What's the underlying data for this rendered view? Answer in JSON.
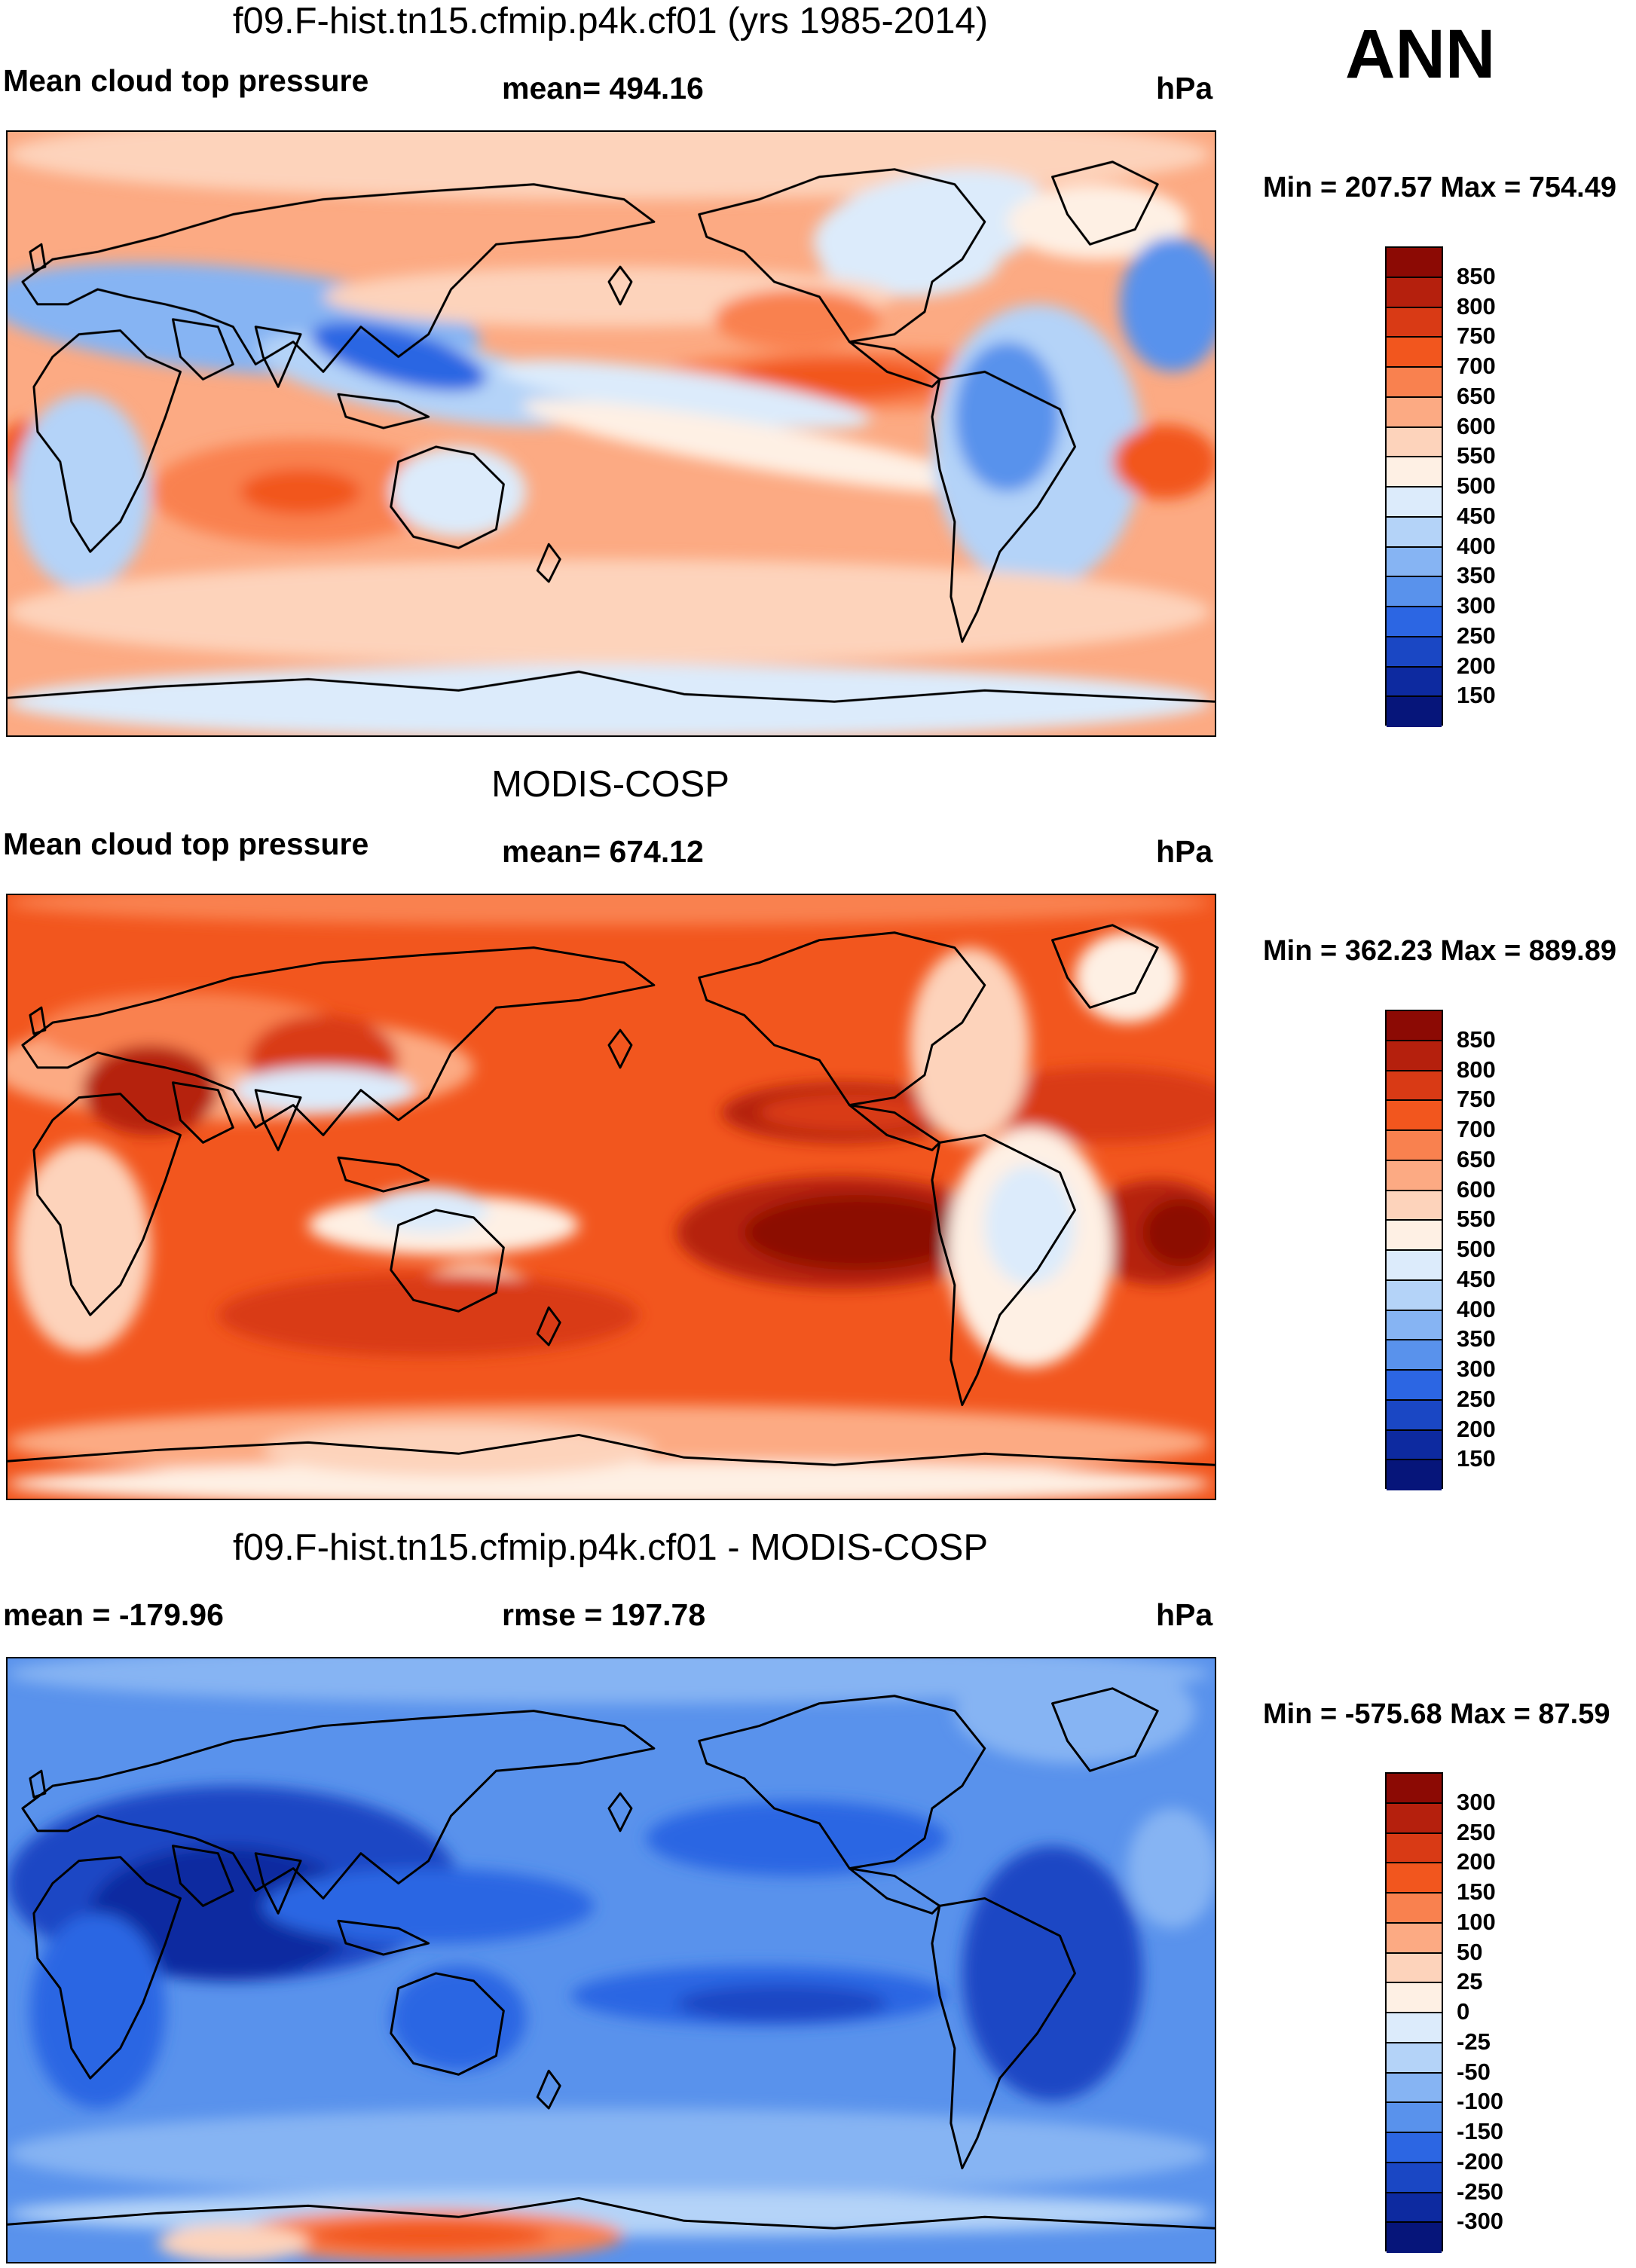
{
  "season": "ANN",
  "coast_color": "#000000",
  "panels": [
    {
      "title": "f09.F-hist.tn15.cfmip.p4k.cf01 (yrs 1985-2014)",
      "left_label": "Mean cloud top pressure",
      "center_label": "mean= 494.16",
      "units": "hPa",
      "minmax": "Min = 207.57 Max = 754.49",
      "field": "model",
      "colorbar": {
        "labels": [
          "850",
          "800",
          "750",
          "700",
          "650",
          "600",
          "550",
          "500",
          "450",
          "400",
          "350",
          "300",
          "250",
          "200",
          "150"
        ],
        "colors": [
          "#8c0a04",
          "#b5200d",
          "#d93a15",
          "#f2561e",
          "#f9814f",
          "#fcaa83",
          "#fdd3bb",
          "#fef0e4",
          "#dcebfb",
          "#b4d3f8",
          "#86b4f3",
          "#5992ec",
          "#2c66e3",
          "#1a47c4",
          "#0d2aa0",
          "#06157a"
        ]
      }
    },
    {
      "title": "MODIS-COSP",
      "left_label": "Mean cloud top pressure",
      "center_label": "mean= 674.12",
      "units": "hPa",
      "minmax": "Min = 362.23 Max = 889.89",
      "field": "obs",
      "colorbar": {
        "labels": [
          "850",
          "800",
          "750",
          "700",
          "650",
          "600",
          "550",
          "500",
          "450",
          "400",
          "350",
          "300",
          "250",
          "200",
          "150"
        ],
        "colors": [
          "#8c0a04",
          "#b5200d",
          "#d93a15",
          "#f2561e",
          "#f9814f",
          "#fcaa83",
          "#fdd3bb",
          "#fef0e4",
          "#dcebfb",
          "#b4d3f8",
          "#86b4f3",
          "#5992ec",
          "#2c66e3",
          "#1a47c4",
          "#0d2aa0",
          "#06157a"
        ]
      }
    },
    {
      "title": "f09.F-hist.tn15.cfmip.p4k.cf01 - MODIS-COSP",
      "left_label": "mean = -179.96",
      "center_label": "rmse = 197.78",
      "units": "hPa",
      "minmax": "Min = -575.68 Max =  87.59",
      "field": "diff",
      "colorbar": {
        "labels": [
          "300",
          "250",
          "200",
          "150",
          "100",
          "50",
          "25",
          "0",
          "-25",
          "-50",
          "-100",
          "-150",
          "-200",
          "-250",
          "-300"
        ],
        "colors": [
          "#8c0a04",
          "#b5200d",
          "#d93a15",
          "#f2561e",
          "#f9814f",
          "#fcaa83",
          "#fdd3bb",
          "#fef0e4",
          "#dcebfb",
          "#b4d3f8",
          "#86b4f3",
          "#5992ec",
          "#2c66e3",
          "#1a47c4",
          "#0d2aa0",
          "#06157a"
        ]
      }
    }
  ]
}
